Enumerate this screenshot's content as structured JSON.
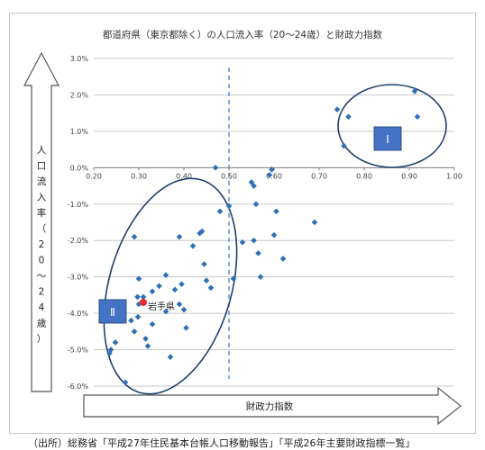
{
  "source_note": "（出所）総務省「平成27年住民基本台帳人口移動報告」「平成26年主要財政指標一覧」",
  "colors": {
    "marker": "#2e6fb5",
    "highlight": "#e8262d",
    "ellipse": "#1f3f6e",
    "box_fill": "#4472c4",
    "grid": "#c8c8c8",
    "axis": "#808080",
    "threshold": "#3a78c2"
  },
  "icons": [
    "arrow-up-icon",
    "arrow-right-icon"
  ],
  "chart_data": {
    "type": "scatter",
    "title": "都道府県（東京都除く）の人口流入率（20～24歳）と財政力指数",
    "y_arrow_label_chars": [
      "人",
      "口",
      "流",
      "入",
      "率",
      "（",
      "2",
      "0",
      "～",
      "2",
      "4",
      "歳",
      "）"
    ],
    "x_arrow_label": "財政力指数",
    "xlim": [
      0.2,
      1.0
    ],
    "ylim": [
      -6.0,
      3.0
    ],
    "xticks": [
      "0.20",
      "0.30",
      "0.40",
      "0.50",
      "0.60",
      "0.70",
      "0.80",
      "0.90",
      "1.00"
    ],
    "yticks": [
      "3.0%",
      "2.0%",
      "1.0%",
      "0.0%",
      "-1.0%",
      "-2.0%",
      "-3.0%",
      "-4.0%",
      "-5.0%",
      "-6.0%"
    ],
    "grid": "horizontal",
    "threshold_x": 0.5,
    "group_labels": [
      "Ⅰ",
      "Ⅱ"
    ],
    "highlight": {
      "label": "岩手県",
      "x": 0.31,
      "y": -3.7
    },
    "points": [
      {
        "x": 0.235,
        "y": -5.1
      },
      {
        "x": 0.238,
        "y": -5.0
      },
      {
        "x": 0.248,
        "y": -4.8
      },
      {
        "x": 0.27,
        "y": -5.9
      },
      {
        "x": 0.283,
        "y": -4.2
      },
      {
        "x": 0.29,
        "y": -4.5
      },
      {
        "x": 0.298,
        "y": -4.1
      },
      {
        "x": 0.29,
        "y": -1.9
      },
      {
        "x": 0.297,
        "y": -3.55
      },
      {
        "x": 0.3,
        "y": -3.05
      },
      {
        "x": 0.31,
        "y": -3.55
      },
      {
        "x": 0.3,
        "y": -3.75
      },
      {
        "x": 0.315,
        "y": -4.7
      },
      {
        "x": 0.32,
        "y": -4.9
      },
      {
        "x": 0.33,
        "y": -3.4
      },
      {
        "x": 0.33,
        "y": -4.3
      },
      {
        "x": 0.345,
        "y": -3.25
      },
      {
        "x": 0.36,
        "y": -3.95
      },
      {
        "x": 0.36,
        "y": -2.95
      },
      {
        "x": 0.37,
        "y": -5.2
      },
      {
        "x": 0.38,
        "y": -3.35
      },
      {
        "x": 0.39,
        "y": -3.75
      },
      {
        "x": 0.39,
        "y": -1.9
      },
      {
        "x": 0.395,
        "y": -3.2
      },
      {
        "x": 0.4,
        "y": -3.9
      },
      {
        "x": 0.405,
        "y": -4.4
      },
      {
        "x": 0.42,
        "y": -2.15
      },
      {
        "x": 0.435,
        "y": -1.8
      },
      {
        "x": 0.44,
        "y": -1.75
      },
      {
        "x": 0.445,
        "y": -2.65
      },
      {
        "x": 0.45,
        "y": -3.1
      },
      {
        "x": 0.46,
        "y": -3.3
      },
      {
        "x": 0.47,
        "y": 0.0
      },
      {
        "x": 0.48,
        "y": -1.2
      },
      {
        "x": 0.5,
        "y": -1.05
      },
      {
        "x": 0.51,
        "y": -3.05
      },
      {
        "x": 0.53,
        "y": -2.05
      },
      {
        "x": 0.55,
        "y": -0.4
      },
      {
        "x": 0.555,
        "y": -0.5
      },
      {
        "x": 0.555,
        "y": -2.0
      },
      {
        "x": 0.56,
        "y": -1.0
      },
      {
        "x": 0.565,
        "y": -2.35
      },
      {
        "x": 0.57,
        "y": -3.0
      },
      {
        "x": 0.59,
        "y": -0.2
      },
      {
        "x": 0.595,
        "y": -0.05
      },
      {
        "x": 0.6,
        "y": -1.85
      },
      {
        "x": 0.605,
        "y": -1.2
      },
      {
        "x": 0.62,
        "y": -2.5
      },
      {
        "x": 0.69,
        "y": -1.5
      },
      {
        "x": 0.74,
        "y": 1.6
      },
      {
        "x": 0.755,
        "y": 0.6
      },
      {
        "x": 0.765,
        "y": 1.4
      },
      {
        "x": 0.912,
        "y": 2.1
      },
      {
        "x": 0.918,
        "y": 1.4
      }
    ]
  }
}
